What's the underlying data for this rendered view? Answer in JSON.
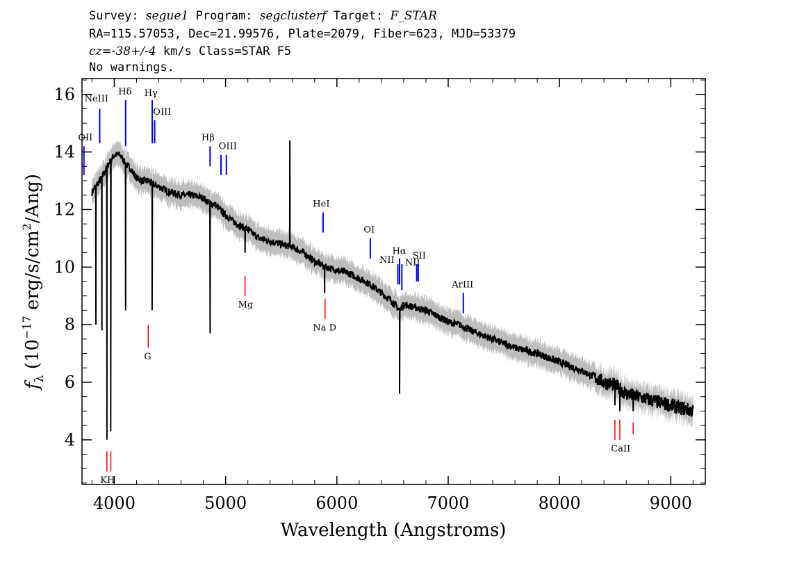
{
  "header": {
    "line1": [
      {
        "text": "Survey: ",
        "italic": false
      },
      {
        "text": "segue1",
        "italic": true
      },
      {
        "text": " Program: ",
        "italic": false
      },
      {
        "text": "segclusterf",
        "italic": true
      },
      {
        "text": " Target: ",
        "italic": false
      },
      {
        "text": "F_STAR",
        "italic": true
      }
    ],
    "line2": "RA=115.57053, Dec=21.99576, Plate=2079, Fiber=623, MJD=53379",
    "line3": [
      {
        "text": "cz=-38+/-4",
        "italic": true
      },
      {
        "text": " km/s Class=STAR F5",
        "italic": false
      }
    ],
    "line4": "No warnings."
  },
  "chart_data": {
    "type": "line",
    "xlabel": "Wavelength (Angstroms)",
    "ylabel": "f_λ (10^-17 erg/s/cm^2/Ang)",
    "xlim": [
      3710,
      9310
    ],
    "ylim": [
      2.45,
      16.55
    ],
    "xticks": [
      4000,
      5000,
      6000,
      7000,
      8000,
      9000
    ],
    "yticks": [
      4,
      6,
      8,
      10,
      12,
      14,
      16
    ],
    "colors": {
      "flux": "#000000",
      "error": "#bdbdbd",
      "emission": "#0000ff",
      "absorption": "#ff0000"
    },
    "series": [
      {
        "name": "flux",
        "x": [
          3800,
          3830,
          3850,
          3870,
          3900,
          3950,
          4000,
          4050,
          4100,
          4150,
          4200,
          4250,
          4300,
          4340,
          4400,
          4450,
          4500,
          4600,
          4700,
          4800,
          4861,
          4900,
          5000,
          5100,
          5200,
          5300,
          5400,
          5500,
          5600,
          5700,
          5800,
          5900,
          6000,
          6100,
          6200,
          6300,
          6400,
          6500,
          6563,
          6600,
          6700,
          6800,
          6900,
          7000,
          7100,
          7200,
          7400,
          7600,
          7800,
          8000,
          8200,
          8400,
          8500,
          8600,
          8800,
          9000,
          9200
        ],
        "y": [
          12.6,
          12.8,
          12.9,
          13.0,
          13.2,
          13.6,
          13.9,
          13.9,
          13.6,
          13.4,
          13.1,
          13.0,
          13.0,
          12.9,
          12.8,
          12.7,
          12.6,
          12.5,
          12.5,
          12.4,
          12.2,
          12.2,
          11.8,
          11.5,
          11.3,
          11.0,
          10.9,
          10.8,
          10.7,
          10.5,
          10.2,
          10.0,
          9.9,
          9.8,
          9.6,
          9.4,
          9.1,
          8.8,
          8.5,
          8.7,
          8.6,
          8.5,
          8.3,
          8.1,
          8.0,
          7.8,
          7.5,
          7.2,
          7.0,
          6.7,
          6.4,
          6.0,
          5.9,
          5.6,
          5.4,
          5.2,
          5.0
        ]
      }
    ],
    "absorption_dips": [
      {
        "x": 3835,
        "y": 8.0
      },
      {
        "x": 3889,
        "y": 7.8
      },
      {
        "x": 3934,
        "y": 4.0
      },
      {
        "x": 3968,
        "y": 4.3
      },
      {
        "x": 4102,
        "y": 8.5
      },
      {
        "x": 4340,
        "y": 8.5
      },
      {
        "x": 4861,
        "y": 7.7
      },
      {
        "x": 5175,
        "y": 10.5
      },
      {
        "x": 5890,
        "y": 9.1
      },
      {
        "x": 6563,
        "y": 5.6
      },
      {
        "x": 8498,
        "y": 5.2
      },
      {
        "x": 8542,
        "y": 5.0
      },
      {
        "x": 8662,
        "y": 5.0
      }
    ],
    "spikes": [
      {
        "x": 5577,
        "y": 14.4
      }
    ],
    "emission_lines": [
      {
        "label": "OII",
        "x": 3727,
        "y_top": 14.2,
        "y_bot": 13.2
      },
      {
        "label": "NeIII",
        "x": 3869,
        "y_top": 15.5,
        "y_bot": 14.3
      },
      {
        "label": "Hδ",
        "x": 4102,
        "y_top": 15.8,
        "y_bot": 14.2
      },
      {
        "label": "Hγ",
        "x": 4341,
        "y_top": 15.8,
        "y_bot": 14.3
      },
      {
        "label": "OIII",
        "x": 4363,
        "y_top": 15.1,
        "y_bot": 14.3
      },
      {
        "label": "Hβ",
        "x": 4861,
        "y_top": 14.2,
        "y_bot": 13.5
      },
      {
        "label": "OIII",
        "x": 4959,
        "y_top": 13.9,
        "y_bot": 13.2
      },
      {
        "label": "OIII",
        "x": 5007,
        "y_top": 13.9,
        "y_bot": 13.2
      },
      {
        "label": "HeI",
        "x": 5876,
        "y_top": 11.9,
        "y_bot": 11.2
      },
      {
        "label": "OI",
        "x": 6300,
        "y_top": 11.0,
        "y_bot": 10.3
      },
      {
        "label": "NII",
        "x": 6548,
        "y_top": 10.1,
        "y_bot": 9.4
      },
      {
        "label": "Hα",
        "x": 6563,
        "y_top": 10.3,
        "y_bot": 9.4
      },
      {
        "label": "NII",
        "x": 6584,
        "y_top": 10.1,
        "y_bot": 9.2
      },
      {
        "label": "SII",
        "x": 6717,
        "y_top": 10.1,
        "y_bot": 9.5
      },
      {
        "label": "SII",
        "x": 6731,
        "y_top": 10.1,
        "y_bot": 9.5
      },
      {
        "label": "ArIII",
        "x": 7136,
        "y_top": 9.1,
        "y_bot": 8.4
      }
    ],
    "absorption_lines": [
      {
        "label": "K",
        "x": 3934,
        "y_top": 3.6,
        "y_bot": 2.9
      },
      {
        "label": "H",
        "x": 3969,
        "y_top": 3.6,
        "y_bot": 2.9
      },
      {
        "label": "G",
        "x": 4305,
        "y_top": 8.0,
        "y_bot": 7.2
      },
      {
        "label": "Mg",
        "x": 5175,
        "y_top": 9.7,
        "y_bot": 9.0
      },
      {
        "label": "Na",
        "x": 5894,
        "y_top": 8.9,
        "y_bot": 8.2
      },
      {
        "label": "CaII",
        "x": 8498,
        "y_top": 4.7,
        "y_bot": 4.0
      },
      {
        "label": "CaII",
        "x": 8542,
        "y_top": 4.7,
        "y_bot": 4.0
      },
      {
        "label": "CaII",
        "x": 8662,
        "y_top": 4.6,
        "y_bot": 4.2
      }
    ],
    "annotations": [
      {
        "text": "OII",
        "x": 3740,
        "y": 14.4
      },
      {
        "text": "NeIII",
        "x": 3840,
        "y": 15.75
      },
      {
        "text": "Hδ",
        "x": 4096,
        "y": 16.0
      },
      {
        "text": "Hγ",
        "x": 4330,
        "y": 15.95
      },
      {
        "text": "OIII",
        "x": 4430,
        "y": 15.3
      },
      {
        "text": "Hβ",
        "x": 4842,
        "y": 14.4
      },
      {
        "text": "OIII",
        "x": 5020,
        "y": 14.1
      },
      {
        "text": "HeI",
        "x": 5860,
        "y": 12.1
      },
      {
        "text": "OI",
        "x": 6290,
        "y": 11.2
      },
      {
        "text": "NII",
        "x": 6450,
        "y": 10.15
      },
      {
        "text": "Hα",
        "x": 6560,
        "y": 10.45
      },
      {
        "text": "NII",
        "x": 6680,
        "y": 10.05
      },
      {
        "text": "SII",
        "x": 6740,
        "y": 10.3
      },
      {
        "text": "ArIII",
        "x": 7130,
        "y": 9.3
      },
      {
        "text": "KH",
        "x": 3940,
        "y": 2.5
      },
      {
        "text": "G",
        "x": 4300,
        "y": 6.8
      },
      {
        "text": "Mg",
        "x": 5180,
        "y": 8.6
      },
      {
        "text": "Na  D",
        "x": 5890,
        "y": 7.8
      },
      {
        "text": "CaII",
        "x": 8550,
        "y": 3.6
      }
    ]
  }
}
